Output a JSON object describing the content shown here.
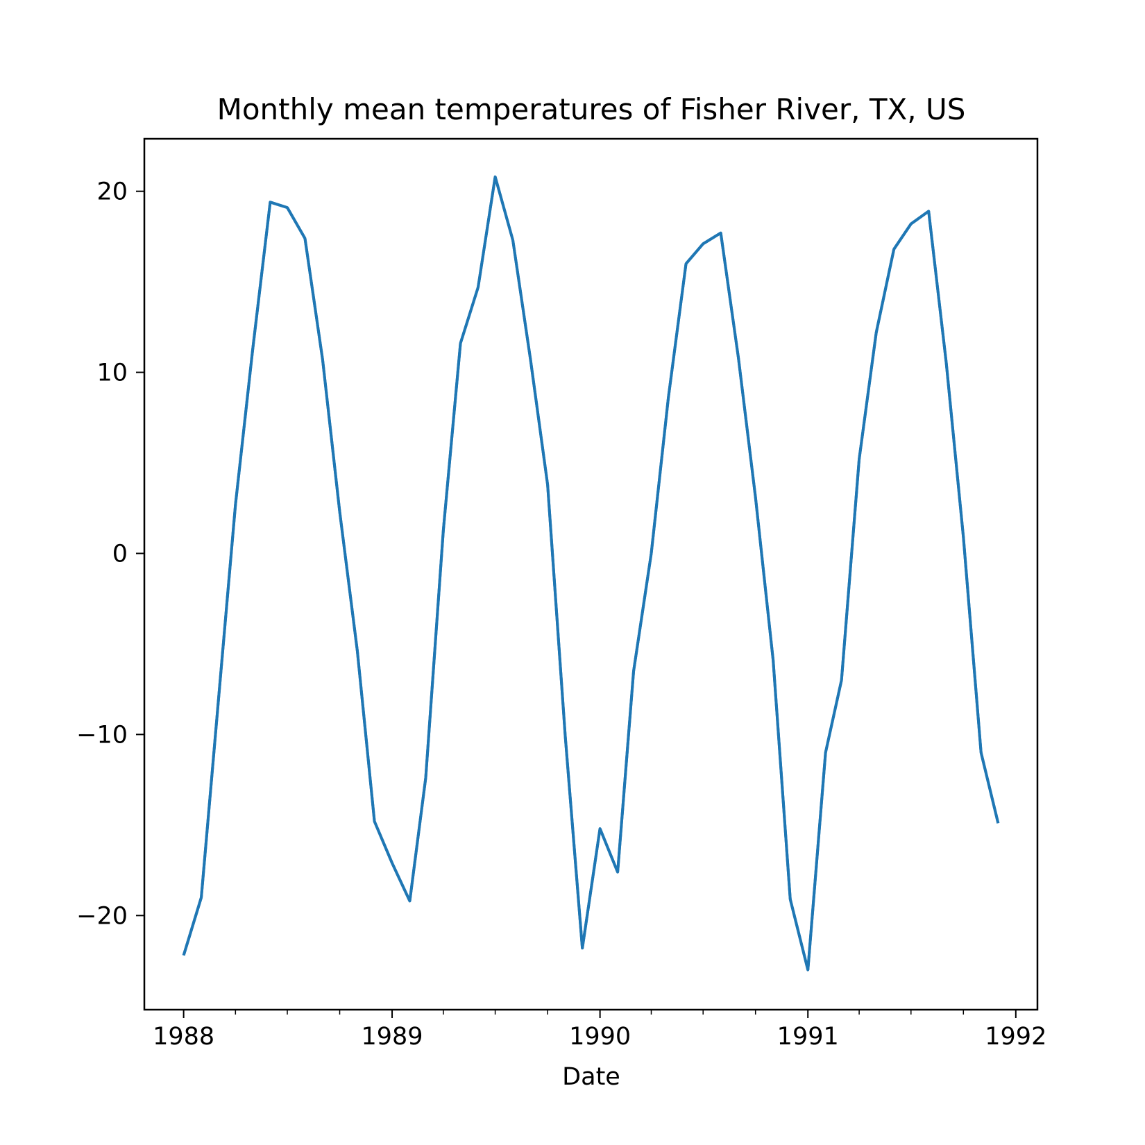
{
  "chart_data": {
    "type": "line",
    "title": "Monthly mean temperatures of Fisher River, TX, US",
    "xlabel": "Date",
    "ylabel": "",
    "x_axis": "date",
    "xlim": [
      "1987-10-24",
      "1992-02-08"
    ],
    "ylim": [
      -25.2,
      22.9
    ],
    "x_ticks": [
      "1988-01-01",
      "1989-01-01",
      "1990-01-01",
      "1991-01-01",
      "1992-01-01"
    ],
    "x_tick_labels": [
      "1988",
      "1989",
      "1990",
      "1991",
      "1992"
    ],
    "x_minor_ticks": [
      "1988-04-01",
      "1988-07-01",
      "1988-10-01",
      "1989-04-01",
      "1989-07-01",
      "1989-10-01",
      "1990-04-01",
      "1990-07-01",
      "1990-10-01",
      "1991-04-01",
      "1991-07-01",
      "1991-10-01"
    ],
    "y_ticks": [
      20,
      10,
      0,
      -10,
      -20
    ],
    "y_tick_labels": [
      "20",
      "10",
      "0",
      "−10",
      "−20"
    ],
    "grid": false,
    "legend": false,
    "line_color": "#1f77b4",
    "series": [
      {
        "x": [
          "1988-01-01",
          "1988-02-01",
          "1988-03-01",
          "1988-04-01",
          "1988-05-01",
          "1988-06-01",
          "1988-07-01",
          "1988-08-01",
          "1988-09-01",
          "1988-10-01",
          "1988-11-01",
          "1988-12-01",
          "1989-01-01",
          "1989-02-01",
          "1989-03-01",
          "1989-04-01",
          "1989-05-01",
          "1989-06-01",
          "1989-07-01",
          "1989-08-01",
          "1989-09-01",
          "1989-10-01",
          "1989-11-01",
          "1989-12-01",
          "1990-01-01",
          "1990-02-01",
          "1990-03-01",
          "1990-04-01",
          "1990-05-01",
          "1990-06-01",
          "1990-07-01",
          "1990-08-01",
          "1990-09-01",
          "1990-10-01",
          "1990-11-01",
          "1990-12-01",
          "1991-01-01",
          "1991-02-01",
          "1991-03-01",
          "1991-04-01",
          "1991-05-01",
          "1991-06-01",
          "1991-07-01",
          "1991-08-01",
          "1991-09-01",
          "1991-10-01",
          "1991-11-01",
          "1991-12-01"
        ],
        "values": [
          -22.2,
          -19.0,
          -8.5,
          2.7,
          11.2,
          19.4,
          19.1,
          17.4,
          10.7,
          2.3,
          -5.4,
          -14.8,
          -17.1,
          -19.2,
          -12.4,
          1.3,
          11.6,
          14.7,
          20.8,
          17.3,
          10.7,
          3.8,
          -10.1,
          -21.8,
          -15.2,
          -17.6,
          -6.5,
          0.0,
          8.6,
          16.0,
          17.1,
          17.7,
          10.8,
          3.1,
          -5.9,
          -19.1,
          -23.0,
          -11.0,
          -7.0,
          5.2,
          12.2,
          16.8,
          18.2,
          18.9,
          10.5,
          0.9,
          -11.0,
          -14.9
        ]
      }
    ]
  }
}
